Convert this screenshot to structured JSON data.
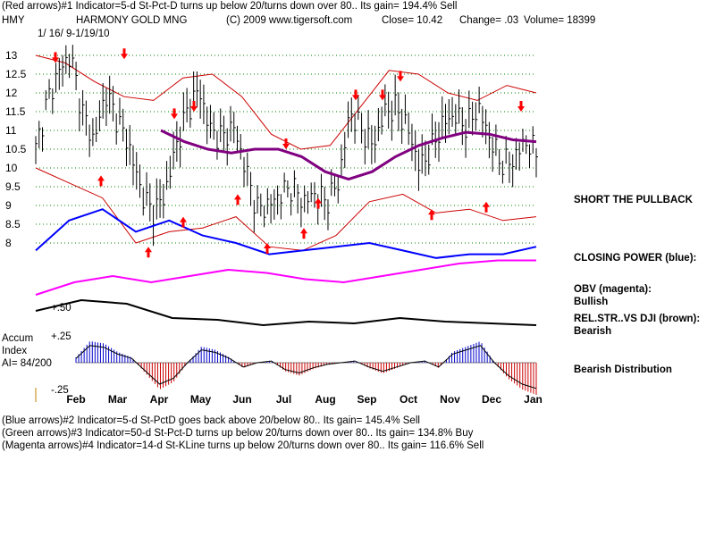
{
  "header": {
    "line1": "(Red arrows)#1 Indicator=5-d St-Pct-D turns up below 20/turns down over 80.. Its gain= 194.4% Sell",
    "ticker": "HMY",
    "company": "HARMONY GOLD MNG",
    "copyright": "(C) 2009 www.tigersoft.com",
    "close": "Close=  10.42",
    "change": "Change= .03",
    "volume": "Volume= 18399",
    "date_range": "1/ 16/ 9-1/19/10"
  },
  "right_labels": {
    "short_pullback": "SHORT THE PULLBACK",
    "closing_power": "CLOSING POWER (blue):",
    "obv_title": "OBV (magenta):",
    "obv_value": "Bullish",
    "relstr_title": "REL.STR..VS DJI (brown):",
    "relstr_value": "Bearish",
    "distribution": "Bearish Distribution"
  },
  "left_labels": {
    "accum": "Accum",
    "index": "Index",
    "ai": "AI= 84/200",
    "plus50": "+.50",
    "plus25": "+.25",
    "minus25": "-.25"
  },
  "footer": {
    "line1": "(Blue arrows)#2 Indicator=5-d St-PctD goes back above 20/below 80.. Its gain= 145.4% Sell",
    "line2": "(Green arrows)#3 Indicator=50-d St-Pct-D turns up below 20/turns down over 80.. Its gain= 134.8% Buy",
    "line3": "(Magenta arrows)#4 Indicator=14-d St-KLine turns up below 20/turns down over 80.. Its gain= 116.6% Sell"
  },
  "colors": {
    "price": "#000000",
    "arrows": "#ff0000",
    "bands": "#cc0000",
    "ma": "#800080",
    "closing_power": "#0000ff",
    "obv": "#ff00ff",
    "relstr": "#000000",
    "accum_pos": "#0000cc",
    "accum_neg": "#cc0000",
    "grid": "#008000"
  },
  "chart_data": {
    "type": "line",
    "x_tick_labels": [
      "Feb",
      "Mar",
      "Apr",
      "May",
      "Jun",
      "Jul",
      "Aug",
      "Sep",
      "Oct",
      "Nov",
      "Dec",
      "Jan"
    ],
    "y_tick_labels": [
      "13",
      "12.5",
      "12",
      "11.5",
      "11",
      "10.5",
      "10",
      "9.5",
      "9",
      "8.5",
      "8"
    ],
    "ylim": [
      7.9,
      13.1
    ],
    "price_close": [
      10.5,
      11.8,
      12.6,
      13.0,
      11.5,
      10.7,
      12.0,
      11.3,
      10.6,
      9.4,
      8.8,
      9.2,
      10.5,
      11.5,
      12.1,
      11.0,
      10.8,
      11.1,
      10.0,
      8.9,
      9.0,
      9.3,
      9.5,
      9.1,
      9.3,
      9.1,
      9.6,
      11.5,
      11.0,
      10.6,
      11.5,
      11.6,
      11.0,
      10.0,
      10.5,
      11.2,
      11.4,
      11.1,
      11.6,
      10.8,
      10.1,
      10.2,
      10.7,
      10.42
    ],
    "moving_average": [
      11.0,
      10.7,
      10.5,
      10.4,
      10.5,
      10.5,
      10.3,
      9.9,
      9.7,
      9.9,
      10.3,
      10.6,
      10.8,
      10.95,
      10.9,
      10.75,
      10.7
    ],
    "upper_band": [
      13.0,
      12.8,
      12.3,
      11.9,
      11.8,
      12.4,
      12.5,
      11.9,
      10.9,
      10.5,
      10.6,
      11.6,
      12.6,
      12.5,
      12.0,
      11.8,
      12.2,
      12.0
    ],
    "lower_band": [
      10.0,
      9.6,
      9.2,
      8.0,
      8.3,
      8.4,
      8.7,
      7.9,
      7.8,
      8.2,
      9.1,
      9.3,
      8.8,
      8.9,
      8.6,
      8.7
    ],
    "closing_power": [
      7.8,
      8.6,
      8.9,
      8.3,
      8.6,
      8.2,
      8.0,
      7.7,
      7.8,
      7.9,
      8.0,
      7.8,
      7.6,
      7.7,
      7.7,
      7.9
    ],
    "obv": [
      7.0,
      7.2,
      7.3,
      7.2,
      7.3,
      7.4,
      7.35,
      7.25,
      7.2,
      7.3,
      7.4,
      7.5,
      7.55,
      7.55
    ],
    "rel_str": [
      6.6,
      6.9,
      6.8,
      6.4,
      6.35,
      6.2,
      6.3,
      6.25,
      6.4,
      6.3,
      6.25,
      6.2
    ],
    "accum_ylim": [
      -0.25,
      0.5
    ],
    "accum_index": [
      0.05,
      0.2,
      0.18,
      0.1,
      0.05,
      -0.1,
      -0.25,
      -0.18,
      0.0,
      0.15,
      0.12,
      0.05,
      -0.05,
      0.0,
      0.02,
      -0.08,
      -0.12,
      -0.06,
      -0.02,
      0.0,
      0.02,
      -0.05,
      -0.1,
      -0.05,
      0.0,
      0.02,
      -0.05,
      0.1,
      0.15,
      0.2,
      0.0,
      -0.15,
      -0.25,
      -0.3
    ],
    "red_arrow_sell_prices": [
      12.5,
      12.6,
      11.0,
      11.2,
      10.2,
      11.5,
      11.5,
      12.0,
      11.2
    ],
    "red_arrow_buy_prices": [
      10.1,
      8.2,
      9.0,
      9.6,
      8.3,
      8.7,
      9.5,
      9.2,
      9.4
    ]
  }
}
